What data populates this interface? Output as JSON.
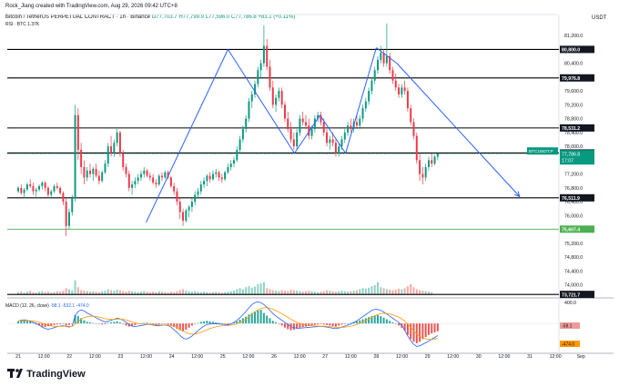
{
  "header": {
    "created_by": "Rock_Jiang created with TradingView.com, Aug 29, 2026 09:42 UTC+8",
    "symbol": "Bitcoin / TetherUS PERPETUAL CONTRACT · 1h · Binance",
    "ohlc": "O77,703.7 H77,799.9 L77,596.0 C77,786.8 +83.1 (+0.11%)",
    "indicator": "RSI · BTC  1.37K",
    "currency": "USDT"
  },
  "brand": "TradingView",
  "colors": {
    "up": "#089981",
    "down": "#f23645",
    "trend": "#2962ff",
    "support_green": "#4caf50",
    "macd_line": "#2962ff",
    "signal_line": "#ff9800"
  },
  "chart_data": {
    "type": "candlestick",
    "ylim": [
      73700,
      81650
    ],
    "y_ticks": [
      74000,
      74400,
      74800,
      75200,
      75600,
      76000,
      76400,
      76800,
      77200,
      77600,
      78000,
      78400,
      78800,
      79200,
      79600,
      80000,
      80400,
      80800,
      81200
    ],
    "x_ticks": [
      "21",
      "12:00",
      "22",
      "12:00",
      "23",
      "12:00",
      "24",
      "12:00",
      "25",
      "12:00",
      "26",
      "12:00",
      "27",
      "12:00",
      "28",
      "12:00",
      "29",
      "12:00",
      "30",
      "12:00",
      "31",
      "12:00",
      "Sep"
    ],
    "horizontal_levels": [
      {
        "label": "80,800.0",
        "value": 80800,
        "color": "#000000"
      },
      {
        "label": "79,976.8",
        "value": 79977,
        "color": "#000000"
      },
      {
        "label": "78,531.2",
        "value": 78531,
        "color": "#000000"
      },
      {
        "label": "77,808.4",
        "value": 77808,
        "color": "#000000"
      },
      {
        "label": "76,511.9",
        "value": 76512,
        "color": "#000000"
      },
      {
        "label": "75,607.4",
        "value": 75607,
        "color": "#4caf50"
      },
      {
        "label": "73,721.7",
        "value": 73722,
        "color": "#000000"
      }
    ],
    "current_price": {
      "symbol": "BTCUSDT.P",
      "price": "77,786.8",
      "countdown": "17:07",
      "value": 77787
    },
    "zigzag": [
      {
        "x": 23.5,
        "y": 75800
      },
      {
        "x": 25.1,
        "y": 80800
      },
      {
        "x": 26.4,
        "y": 77800
      },
      {
        "x": 26.9,
        "y": 78900
      },
      {
        "x": 27.4,
        "y": 77800
      },
      {
        "x": 28.0,
        "y": 80850
      },
      {
        "x": 28.4,
        "y": 80400
      },
      {
        "x": 30.8,
        "y": 76550
      }
    ],
    "ohlc": [
      [
        76700,
        76850,
        76650,
        76800
      ],
      [
        76800,
        76900,
        76600,
        76650
      ],
      [
        76650,
        76800,
        76500,
        76750
      ],
      [
        76750,
        76950,
        76700,
        76900
      ],
      [
        76900,
        77050,
        76800,
        76850
      ],
      [
        76850,
        76950,
        76600,
        76700
      ],
      [
        76700,
        76800,
        76550,
        76750
      ],
      [
        76750,
        76900,
        76700,
        76850
      ],
      [
        76850,
        77000,
        76750,
        76950
      ],
      [
        76950,
        77000,
        76700,
        76800
      ],
      [
        76800,
        76850,
        76500,
        76600
      ],
      [
        76600,
        76750,
        76500,
        76700
      ],
      [
        76700,
        76900,
        76650,
        76850
      ],
      [
        76850,
        76950,
        76750,
        76800
      ],
      [
        76800,
        76850,
        76600,
        76650
      ],
      [
        76650,
        76700,
        76300,
        76400
      ],
      [
        76400,
        76500,
        75400,
        75700
      ],
      [
        75700,
        76200,
        75600,
        76100
      ],
      [
        76100,
        76600,
        76000,
        76500
      ],
      [
        76500,
        79200,
        76400,
        78900
      ],
      [
        78900,
        79100,
        77600,
        77900
      ],
      [
        77900,
        78100,
        77200,
        77400
      ],
      [
        77400,
        77600,
        76900,
        77100
      ],
      [
        77100,
        77400,
        77000,
        77300
      ],
      [
        77300,
        77500,
        77100,
        77200
      ],
      [
        77200,
        77400,
        77000,
        77350
      ],
      [
        77350,
        77500,
        77100,
        77150
      ],
      [
        77150,
        77300,
        76900,
        77000
      ],
      [
        77000,
        77300,
        76950,
        77250
      ],
      [
        77250,
        77600,
        77200,
        77500
      ],
      [
        77500,
        78100,
        77400,
        78000
      ],
      [
        78000,
        78300,
        77700,
        77800
      ],
      [
        77800,
        78200,
        77700,
        78100
      ],
      [
        78100,
        78500,
        78000,
        78400
      ],
      [
        78400,
        78450,
        77700,
        77800
      ],
      [
        77800,
        77900,
        77300,
        77400
      ],
      [
        77400,
        77500,
        77100,
        77200
      ],
      [
        77200,
        77300,
        76700,
        76800
      ],
      [
        76800,
        77000,
        76600,
        76900
      ],
      [
        76900,
        77100,
        76800,
        77000
      ],
      [
        77000,
        77200,
        76900,
        77100
      ],
      [
        77100,
        77300,
        77000,
        77200
      ],
      [
        77200,
        77400,
        77100,
        77300
      ],
      [
        77300,
        77350,
        77100,
        77150
      ],
      [
        77150,
        77250,
        77000,
        77100
      ],
      [
        77100,
        77200,
        76900,
        76950
      ],
      [
        76950,
        77050,
        76800,
        76900
      ],
      [
        76900,
        77200,
        76850,
        77150
      ],
      [
        77150,
        77250,
        77000,
        77100
      ],
      [
        77100,
        77300,
        77050,
        77250
      ],
      [
        77250,
        77300,
        77050,
        77100
      ],
      [
        77100,
        77150,
        76800,
        76850
      ],
      [
        76850,
        76950,
        76600,
        76700
      ],
      [
        76700,
        76800,
        76300,
        76400
      ],
      [
        76400,
        76500,
        75900,
        76100
      ],
      [
        76100,
        76200,
        75700,
        75850
      ],
      [
        75850,
        76200,
        75800,
        76150
      ],
      [
        76150,
        76300,
        75950,
        76250
      ],
      [
        76250,
        76500,
        76100,
        76400
      ],
      [
        76400,
        76700,
        76300,
        76600
      ],
      [
        76600,
        76800,
        76500,
        76700
      ],
      [
        76700,
        77000,
        76600,
        76900
      ],
      [
        76900,
        77100,
        76800,
        77000
      ],
      [
        77000,
        77200,
        76850,
        77150
      ],
      [
        77150,
        77250,
        76950,
        77050
      ],
      [
        77050,
        77300,
        77000,
        77200
      ],
      [
        77200,
        77350,
        77100,
        77250
      ],
      [
        77250,
        77300,
        77000,
        77100
      ],
      [
        77100,
        77200,
        76950,
        77050
      ],
      [
        77050,
        77300,
        77000,
        77250
      ],
      [
        77250,
        77500,
        77200,
        77400
      ],
      [
        77400,
        77600,
        77300,
        77500
      ],
      [
        77500,
        77700,
        77400,
        77600
      ],
      [
        77600,
        78000,
        77550,
        77900
      ],
      [
        77900,
        78300,
        77800,
        78200
      ],
      [
        78200,
        78600,
        78100,
        78500
      ],
      [
        78500,
        78900,
        78400,
        78800
      ],
      [
        78800,
        79400,
        78700,
        79300
      ],
      [
        79300,
        79600,
        79100,
        79500
      ],
      [
        79500,
        79900,
        79400,
        79800
      ],
      [
        79800,
        80300,
        79700,
        80200
      ],
      [
        80200,
        80500,
        80000,
        80400
      ],
      [
        80400,
        81500,
        80300,
        80900
      ],
      [
        80900,
        81100,
        80200,
        80300
      ],
      [
        80300,
        80500,
        79600,
        79700
      ],
      [
        79700,
        79900,
        79100,
        79200
      ],
      [
        79200,
        79500,
        79000,
        79400
      ],
      [
        79400,
        79700,
        79300,
        79600
      ],
      [
        79600,
        79700,
        79100,
        79200
      ],
      [
        79200,
        79300,
        78700,
        78800
      ],
      [
        78800,
        79000,
        78400,
        78500
      ],
      [
        78500,
        78700,
        78100,
        78200
      ],
      [
        78200,
        78400,
        77900,
        78000
      ],
      [
        78000,
        78500,
        77900,
        78400
      ],
      [
        78400,
        78900,
        78300,
        78800
      ],
      [
        78800,
        79000,
        78600,
        78700
      ],
      [
        78700,
        78900,
        78500,
        78600
      ],
      [
        78600,
        78800,
        78200,
        78300
      ],
      [
        78300,
        78600,
        78200,
        78500
      ],
      [
        78500,
        78900,
        78400,
        78800
      ],
      [
        78800,
        79000,
        78700,
        78900
      ],
      [
        78900,
        79000,
        78600,
        78700
      ],
      [
        78700,
        78800,
        78300,
        78400
      ],
      [
        78400,
        78500,
        78000,
        78100
      ],
      [
        78100,
        78300,
        77900,
        78200
      ],
      [
        78200,
        78400,
        78000,
        78100
      ],
      [
        78100,
        78200,
        77700,
        77800
      ],
      [
        77800,
        78100,
        77700,
        78000
      ],
      [
        78000,
        78300,
        77900,
        78200
      ],
      [
        78200,
        78500,
        78100,
        78400
      ],
      [
        78400,
        78700,
        78300,
        78600
      ],
      [
        78600,
        78800,
        78400,
        78500
      ],
      [
        78500,
        78800,
        78400,
        78700
      ],
      [
        78700,
        78900,
        78500,
        78600
      ],
      [
        78600,
        78900,
        78500,
        78800
      ],
      [
        78800,
        79200,
        78700,
        79100
      ],
      [
        79100,
        79400,
        79000,
        79300
      ],
      [
        79300,
        79700,
        79200,
        79600
      ],
      [
        79600,
        80000,
        79500,
        79900
      ],
      [
        79900,
        80300,
        79800,
        80200
      ],
      [
        80200,
        80600,
        80100,
        80500
      ],
      [
        80500,
        80900,
        80400,
        80700
      ],
      [
        80700,
        80800,
        80300,
        80400
      ],
      [
        80400,
        81550,
        80300,
        80600
      ],
      [
        80600,
        80700,
        80100,
        80200
      ],
      [
        80200,
        80300,
        79800,
        79900
      ],
      [
        79900,
        80100,
        79600,
        79700
      ],
      [
        79700,
        79800,
        79400,
        79500
      ],
      [
        79500,
        79800,
        79400,
        79700
      ],
      [
        79700,
        79900,
        79500,
        79600
      ],
      [
        79600,
        79700,
        79000,
        79100
      ],
      [
        79100,
        79200,
        78600,
        78700
      ],
      [
        78700,
        78800,
        78200,
        78300
      ],
      [
        78300,
        78400,
        77500,
        77600
      ],
      [
        77600,
        77800,
        77000,
        77200
      ],
      [
        77200,
        77400,
        76900,
        77100
      ],
      [
        77100,
        77500,
        77000,
        77400
      ],
      [
        77400,
        77700,
        77300,
        77600
      ],
      [
        77600,
        77800,
        77400,
        77500
      ],
      [
        77500,
        77750,
        77450,
        77700
      ],
      [
        77700,
        77800,
        77600,
        77787
      ]
    ],
    "volume_ylim": [
      0,
      100
    ],
    "volume": [
      6,
      8,
      5,
      7,
      9,
      6,
      5,
      7,
      8,
      6,
      7,
      5,
      6,
      8,
      7,
      9,
      14,
      12,
      10,
      30,
      16,
      10,
      9,
      8,
      7,
      8,
      7,
      6,
      8,
      9,
      12,
      10,
      9,
      11,
      10,
      8,
      7,
      9,
      8,
      7,
      6,
      7,
      8,
      7,
      6,
      7,
      6,
      8,
      7,
      6,
      5,
      7,
      6,
      8,
      10,
      12,
      9,
      8,
      7,
      8,
      7,
      6,
      7,
      6,
      5,
      6,
      7,
      6,
      5,
      6,
      7,
      8,
      9,
      12,
      14,
      12,
      16,
      18,
      15,
      17,
      22,
      24,
      26,
      14,
      12,
      10,
      9,
      8,
      10,
      9,
      8,
      11,
      10,
      9,
      8,
      7,
      8,
      9,
      8,
      7,
      6,
      7,
      8,
      10,
      9,
      8,
      7,
      8,
      9,
      8,
      7,
      8,
      9,
      10,
      12,
      14,
      13,
      15,
      18,
      20,
      26,
      16,
      14,
      12,
      11,
      10,
      11,
      13,
      12,
      14,
      18,
      22,
      16,
      12,
      10,
      9,
      8,
      7,
      6
    ],
    "macd": {
      "label": "MACD (12, 26, close)",
      "values": "-58.1  -532.1  -474.0",
      "ylim": [
        -520,
        420
      ],
      "tick_label": "400.0",
      "macd_readout": "-58.1",
      "signal_readout": "-474.0",
      "histogram": [
        40,
        55,
        60,
        45,
        30,
        10,
        -20,
        -40,
        -60,
        -70,
        -55,
        -45,
        -30,
        -20,
        -15,
        -10,
        -40,
        -30,
        -10,
        160,
        140,
        100,
        60,
        30,
        20,
        10,
        0,
        -10,
        -20,
        -15,
        10,
        20,
        30,
        40,
        20,
        -10,
        -40,
        -60,
        -50,
        -30,
        -10,
        0,
        10,
        15,
        5,
        -10,
        -20,
        -15,
        -10,
        -5,
        -20,
        -40,
        -70,
        -100,
        -130,
        -150,
        -120,
        -80,
        -40,
        -10,
        10,
        30,
        40,
        50,
        40,
        30,
        20,
        10,
        0,
        -10,
        -20,
        0,
        20,
        40,
        70,
        100,
        130,
        170,
        200,
        230,
        250,
        260,
        200,
        150,
        100,
        50,
        20,
        -10,
        -40,
        -80,
        -110,
        -130,
        -120,
        -100,
        -80,
        -70,
        -60,
        -50,
        -40,
        -30,
        -20,
        -10,
        -20,
        -30,
        -40,
        -50,
        -60,
        -40,
        -20,
        -10,
        0,
        10,
        20,
        40,
        60,
        80,
        100,
        120,
        140,
        150,
        160,
        140,
        110,
        80,
        50,
        20,
        -10,
        -40,
        -80,
        -140,
        -220,
        -300,
        -350,
        -380,
        -350,
        -300,
        -260,
        -220,
        -190,
        -170,
        -150
      ],
      "macd_line": [
        50,
        60,
        70,
        60,
        40,
        20,
        0,
        -30,
        -70,
        -100,
        -110,
        -100,
        -80,
        -60,
        -50,
        -40,
        -60,
        -70,
        -50,
        150,
        230,
        260,
        240,
        200,
        170,
        140,
        110,
        80,
        50,
        30,
        40,
        60,
        80,
        100,
        90,
        60,
        20,
        -20,
        -50,
        -60,
        -50,
        -40,
        -30,
        -20,
        -20,
        -30,
        -40,
        -40,
        -35,
        -30,
        -40,
        -70,
        -120,
        -170,
        -230,
        -280,
        -300,
        -280,
        -240,
        -190,
        -140,
        -90,
        -50,
        -20,
        -10,
        -5,
        -5,
        -10,
        -15,
        -20,
        -25,
        -10,
        20,
        60,
        110,
        170,
        230,
        300,
        360,
        400,
        410,
        400,
        360,
        310,
        250,
        190,
        140,
        100,
        60,
        20,
        -20,
        -60,
        -80,
        -90,
        -90,
        -85,
        -80,
        -75,
        -70,
        -65,
        -60,
        -55,
        -60,
        -70,
        -80,
        -90,
        -100,
        -90,
        -70,
        -50,
        -30,
        -10,
        20,
        50,
        90,
        130,
        170,
        210,
        250,
        270,
        270,
        250,
        220,
        180,
        140,
        100,
        60,
        20,
        -40,
        -130,
        -240,
        -330,
        -400,
        -440,
        -430,
        -400,
        -370,
        -340,
        -300,
        -270,
        -230
      ]
    }
  }
}
